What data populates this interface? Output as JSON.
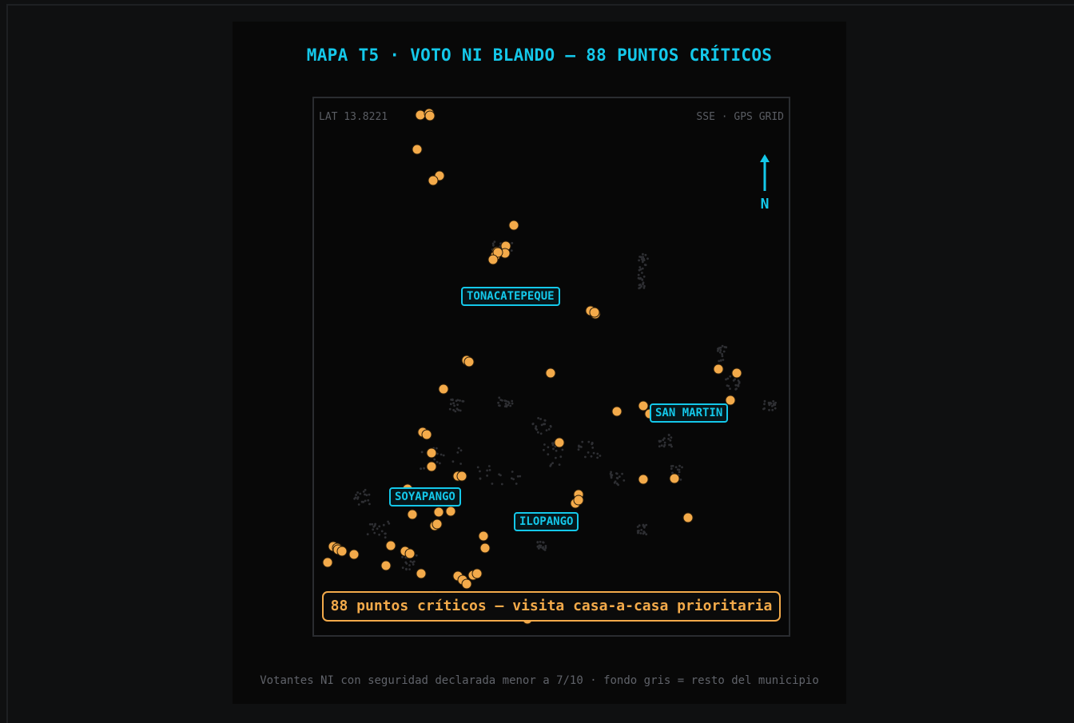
{
  "title": "MAPA T5 · VOTO NI BLANDO — 88 PUNTOS CRÍTICOS",
  "map": {
    "corner_top_left": "LAT 13.8221",
    "corner_top_right": "SSE · GPS GRID",
    "compass_letter": "N",
    "municipios": [
      {
        "name": "TONACATEPEQUE"
      },
      {
        "name": "SAN MARTIN"
      },
      {
        "name": "SOYAPANGO"
      },
      {
        "name": "ILOPANGO"
      }
    ],
    "callout": "88 puntos críticos — visita casa-a-casa prioritaria",
    "point_count": 88
  },
  "footnote": "Votantes NI con seguridad declarada menor a 7/10 · fondo gris = resto del municipio",
  "colors": {
    "accent": "#14c8ea",
    "point": "#f3aa4a",
    "background_dots": "#2e2f33"
  },
  "icons": {
    "compass": "north-arrow-icon"
  }
}
